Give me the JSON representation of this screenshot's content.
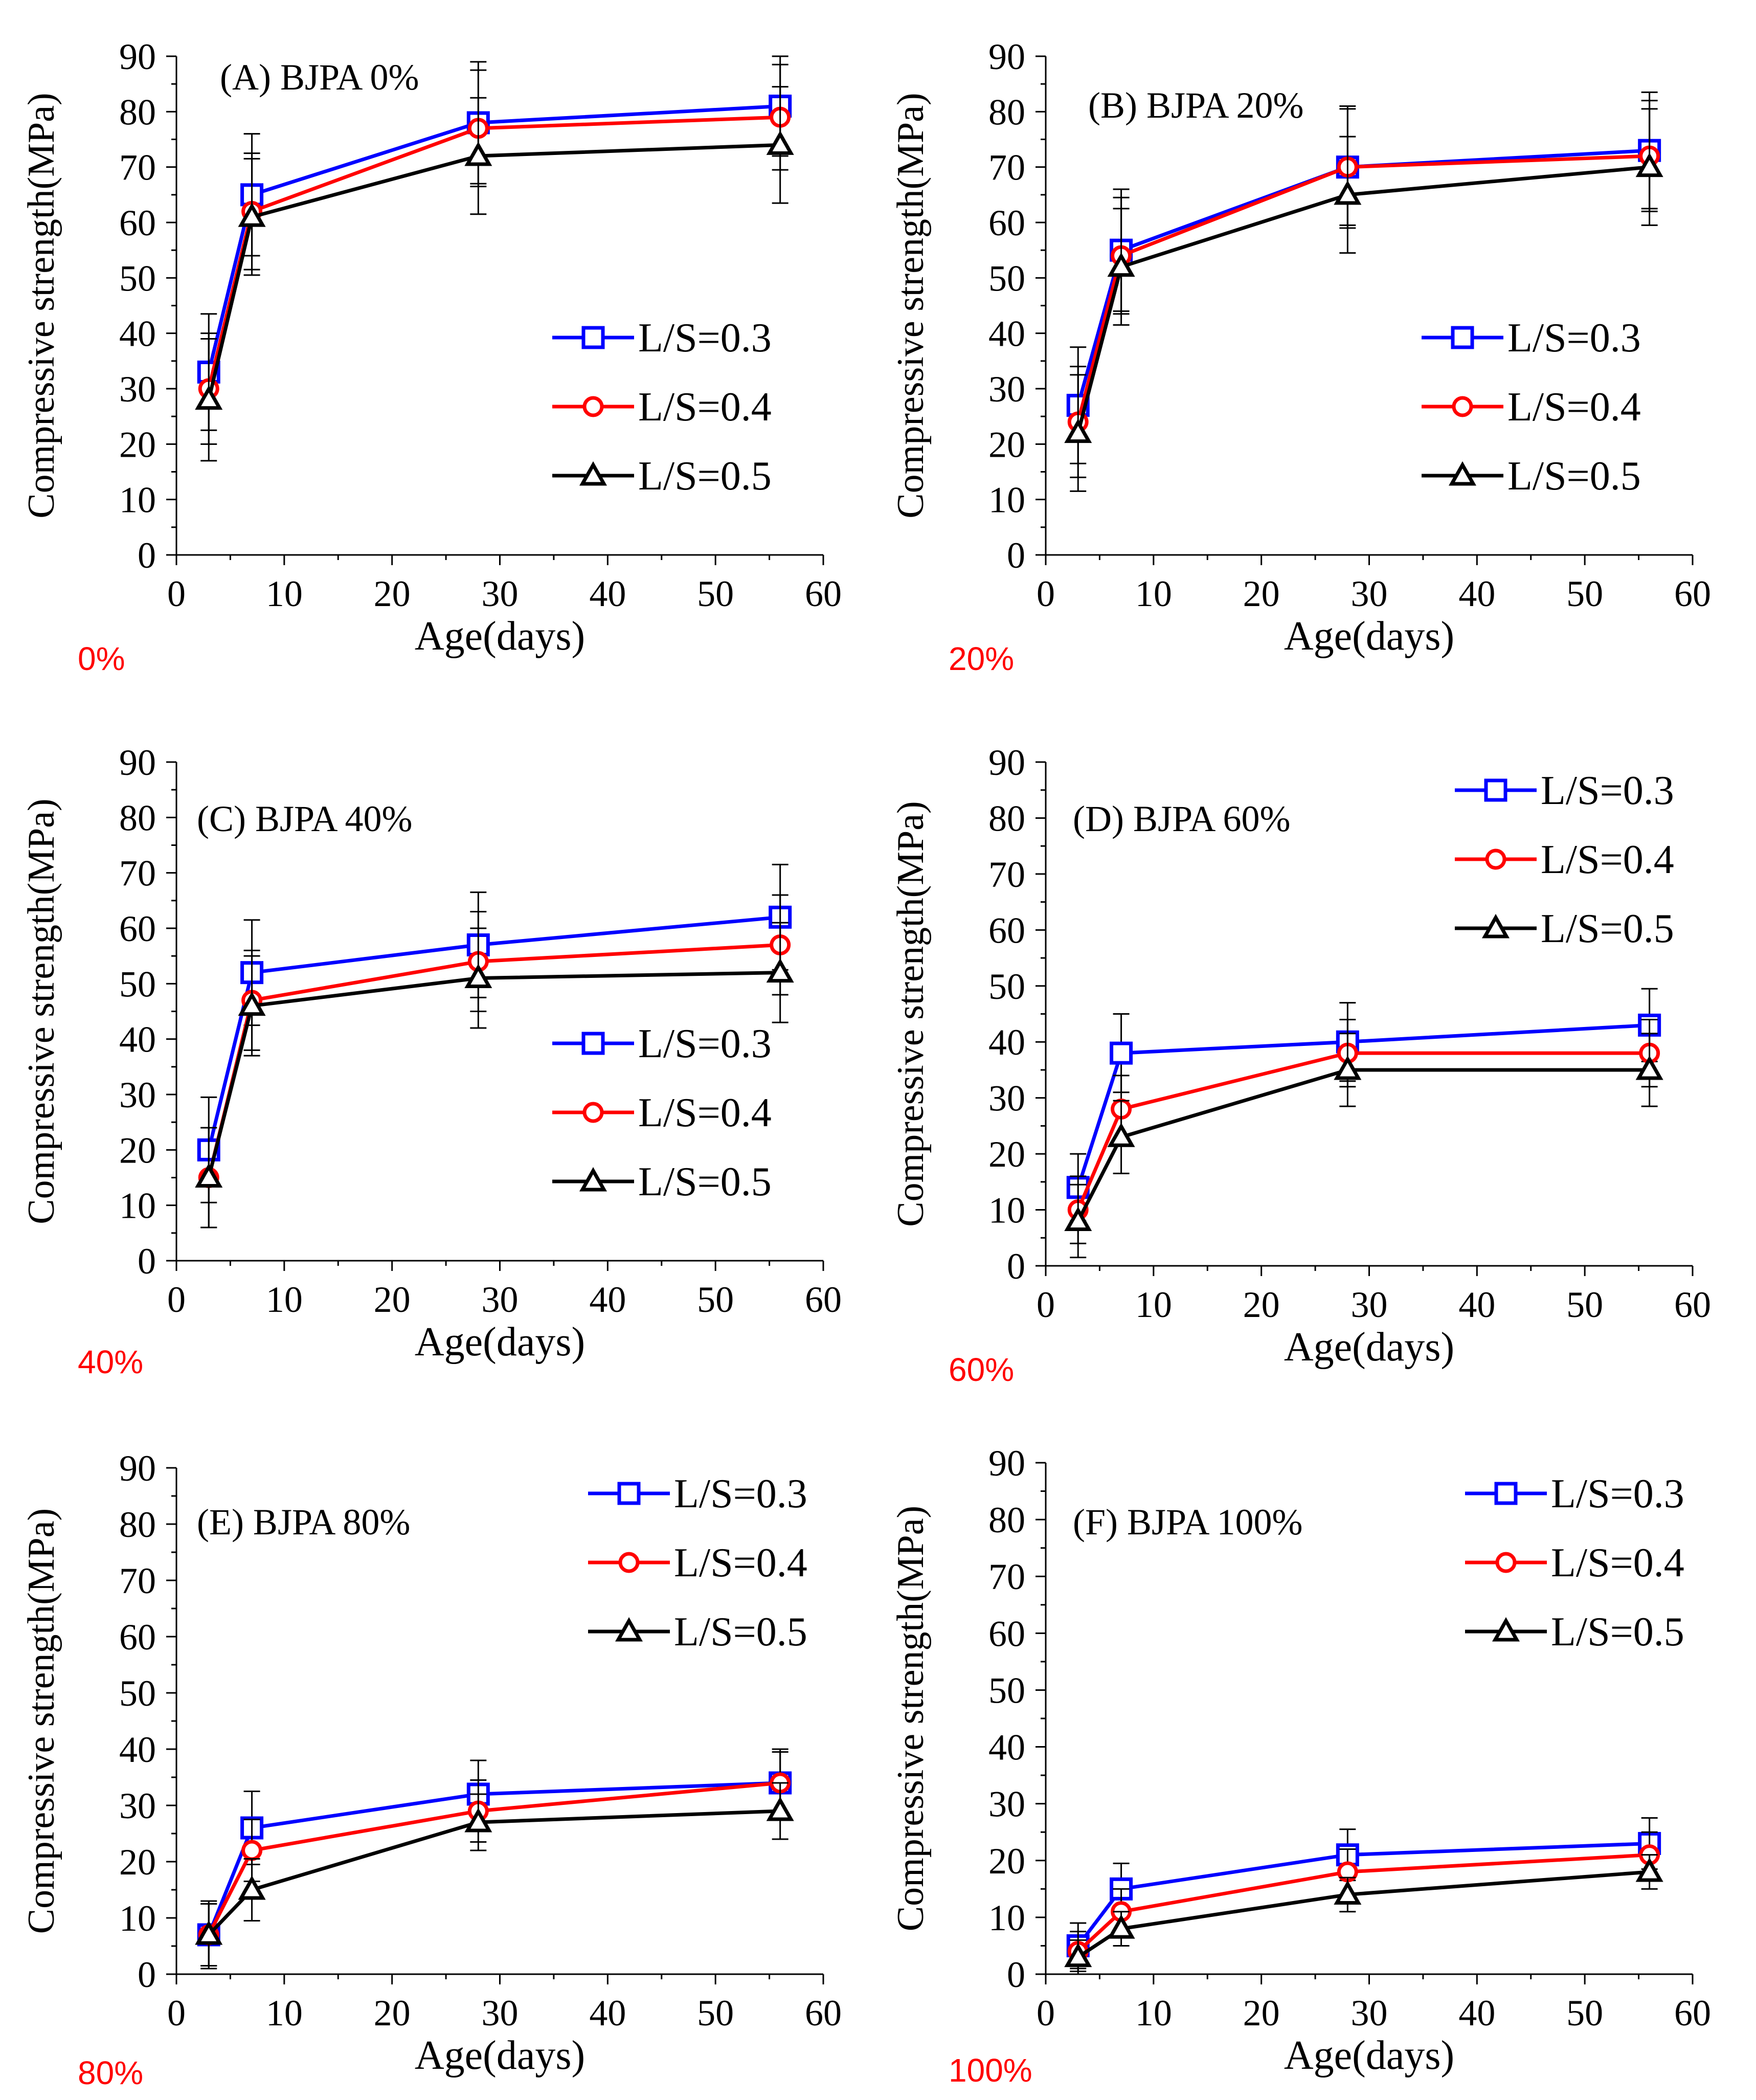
{
  "colors": {
    "s03": "#0000ff",
    "s04": "#ff0000",
    "s05": "#000000",
    "caption": "#ff0000",
    "axis": "#000000"
  },
  "chart_data": [
    {
      "type": "line",
      "title": "(A)  BJPA 0%",
      "caption": "0%",
      "xlabel": "Age(days)",
      "ylabel": "Compressive strength(MPa)",
      "xlim": [
        0,
        60
      ],
      "ylim": [
        0,
        90
      ],
      "xticks": [
        "0",
        "10",
        "20",
        "30",
        "40",
        "50",
        "60"
      ],
      "yticks": [
        "0",
        "10",
        "20",
        "30",
        "40",
        "50",
        "60",
        "70",
        "80",
        "90"
      ],
      "legend_position": "right-middle",
      "x": [
        3,
        7,
        28,
        56
      ],
      "series": [
        {
          "name": "L/S=0.3",
          "marker": "square",
          "color": "#0000ff",
          "values": [
            33,
            65,
            78,
            81
          ],
          "errors": [
            10.5,
            11,
            11,
            9
          ]
        },
        {
          "name": "L/S=0.4",
          "marker": "circle",
          "color": "#ff0000",
          "values": [
            30,
            62,
            77,
            79
          ],
          "errors": [
            10,
            10.5,
            10.5,
            9.5
          ]
        },
        {
          "name": "L/S=0.5",
          "marker": "triangle",
          "color": "#000000",
          "values": [
            28,
            61,
            72,
            74
          ],
          "errors": [
            11,
            10.5,
            10.5,
            10.5
          ]
        }
      ]
    },
    {
      "type": "line",
      "title": "(B)  BJPA 20%",
      "caption": "20%",
      "xlabel": "Age(days)",
      "ylabel": "Compressive strength(MPa)",
      "xlim": [
        0,
        60
      ],
      "ylim": [
        0,
        90
      ],
      "xticks": [
        "0",
        "10",
        "20",
        "30",
        "40",
        "50",
        "60"
      ],
      "yticks": [
        "0",
        "10",
        "20",
        "30",
        "40",
        "50",
        "60",
        "70",
        "80",
        "90"
      ],
      "legend_position": "right-middle",
      "x": [
        3,
        7,
        28,
        56
      ],
      "series": [
        {
          "name": "L/S=0.3",
          "marker": "square",
          "color": "#0000ff",
          "values": [
            27,
            55,
            70,
            73
          ],
          "errors": [
            10.5,
            11,
            11,
            10.5
          ]
        },
        {
          "name": "L/S=0.4",
          "marker": "circle",
          "color": "#ff0000",
          "values": [
            24,
            54,
            70,
            72
          ],
          "errors": [
            10,
            10.5,
            10.5,
            10
          ]
        },
        {
          "name": "L/S=0.5",
          "marker": "triangle",
          "color": "#000000",
          "values": [
            22,
            52,
            65,
            70
          ],
          "errors": [
            10.5,
            10.5,
            10.5,
            10.5
          ]
        }
      ]
    },
    {
      "type": "line",
      "title": "(C)  BJPA 40%",
      "caption": "40%",
      "xlabel": "Age(days)",
      "ylabel": "Compressive strength(MPa)",
      "xlim": [
        0,
        60
      ],
      "ylim": [
        0,
        90
      ],
      "xticks": [
        "0",
        "10",
        "20",
        "30",
        "40",
        "50",
        "60"
      ],
      "yticks": [
        "0",
        "10",
        "20",
        "30",
        "40",
        "50",
        "60",
        "70",
        "80",
        "90"
      ],
      "legend_position": "right-lower",
      "x": [
        3,
        7,
        28,
        56
      ],
      "series": [
        {
          "name": "L/S=0.3",
          "marker": "square",
          "color": "#0000ff",
          "values": [
            20,
            52,
            57,
            62
          ],
          "errors": [
            9.5,
            9.5,
            9.5,
            9.5
          ]
        },
        {
          "name": "L/S=0.4",
          "marker": "circle",
          "color": "#ff0000",
          "values": [
            15,
            47,
            54,
            57
          ],
          "errors": [
            9,
            9,
            9,
            9
          ]
        },
        {
          "name": "L/S=0.5",
          "marker": "triangle",
          "color": "#000000",
          "values": [
            15,
            46,
            51,
            52
          ],
          "errors": [
            9,
            9,
            9,
            9
          ]
        }
      ]
    },
    {
      "type": "line",
      "title": "(D)  BJPA 60%",
      "caption": "60%",
      "xlabel": "Age(days)",
      "ylabel": "Compressive strength(MPa)",
      "xlim": [
        0,
        60
      ],
      "ylim": [
        0,
        90
      ],
      "xticks": [
        "0",
        "10",
        "20",
        "30",
        "40",
        "50",
        "60"
      ],
      "yticks": [
        "0",
        "10",
        "20",
        "30",
        "40",
        "50",
        "60",
        "70",
        "80",
        "90"
      ],
      "legend_position": "top-right",
      "x": [
        3,
        7,
        28,
        56
      ],
      "series": [
        {
          "name": "L/S=0.3",
          "marker": "square",
          "color": "#0000ff",
          "values": [
            14,
            38,
            40,
            43
          ],
          "errors": [
            6,
            7,
            7,
            6.5
          ]
        },
        {
          "name": "L/S=0.4",
          "marker": "circle",
          "color": "#ff0000",
          "values": [
            10,
            28,
            38,
            38
          ],
          "errors": [
            6,
            6,
            6,
            6
          ]
        },
        {
          "name": "L/S=0.5",
          "marker": "triangle",
          "color": "#000000",
          "values": [
            8,
            23,
            35,
            35
          ],
          "errors": [
            6.5,
            6.5,
            6.5,
            6.5
          ]
        }
      ]
    },
    {
      "type": "line",
      "title": "(E)  BJPA 80%",
      "caption": "80%",
      "xlabel": "Age(days)",
      "ylabel": "Compressive strength(MPa)",
      "xlim": [
        0,
        60
      ],
      "ylim": [
        0,
        90
      ],
      "xticks": [
        "0",
        "10",
        "20",
        "30",
        "40",
        "50",
        "60"
      ],
      "yticks": [
        "0",
        "10",
        "20",
        "30",
        "40",
        "50",
        "60",
        "70",
        "80",
        "90"
      ],
      "legend_position": "top-right",
      "x": [
        3,
        7,
        28,
        56
      ],
      "series": [
        {
          "name": "L/S=0.3",
          "marker": "square",
          "color": "#0000ff",
          "values": [
            7,
            26,
            32,
            34
          ],
          "errors": [
            6,
            6.5,
            6,
            6
          ]
        },
        {
          "name": "L/S=0.4",
          "marker": "circle",
          "color": "#ff0000",
          "values": [
            7,
            22,
            29,
            34
          ],
          "errors": [
            5.5,
            5.5,
            5.5,
            5.5
          ]
        },
        {
          "name": "L/S=0.5",
          "marker": "triangle",
          "color": "#000000",
          "values": [
            7,
            15,
            27,
            29
          ],
          "errors": [
            5.5,
            5.5,
            5,
            5
          ]
        }
      ]
    },
    {
      "type": "line",
      "title": "(F)  BJPA 100%",
      "caption": "100%",
      "xlabel": "Age(days)",
      "ylabel": "Compressive strength(MPa)",
      "xlim": [
        0,
        60
      ],
      "ylim": [
        0,
        90
      ],
      "xticks": [
        "0",
        "10",
        "20",
        "30",
        "40",
        "50",
        "60"
      ],
      "yticks": [
        "0",
        "10",
        "20",
        "30",
        "40",
        "50",
        "60",
        "70",
        "80",
        "90"
      ],
      "legend_position": "top-right",
      "x": [
        3,
        7,
        28,
        56
      ],
      "series": [
        {
          "name": "L/S=0.3",
          "marker": "square",
          "color": "#0000ff",
          "values": [
            5,
            15,
            21,
            23
          ],
          "errors": [
            4,
            4.5,
            4.5,
            4.5
          ]
        },
        {
          "name": "L/S=0.4",
          "marker": "circle",
          "color": "#ff0000",
          "values": [
            4,
            11,
            18,
            21
          ],
          "errors": [
            3.5,
            4,
            4,
            4
          ]
        },
        {
          "name": "L/S=0.5",
          "marker": "triangle",
          "color": "#000000",
          "values": [
            3,
            8,
            14,
            18
          ],
          "errors": [
            3,
            3,
            3,
            3
          ]
        }
      ]
    }
  ]
}
